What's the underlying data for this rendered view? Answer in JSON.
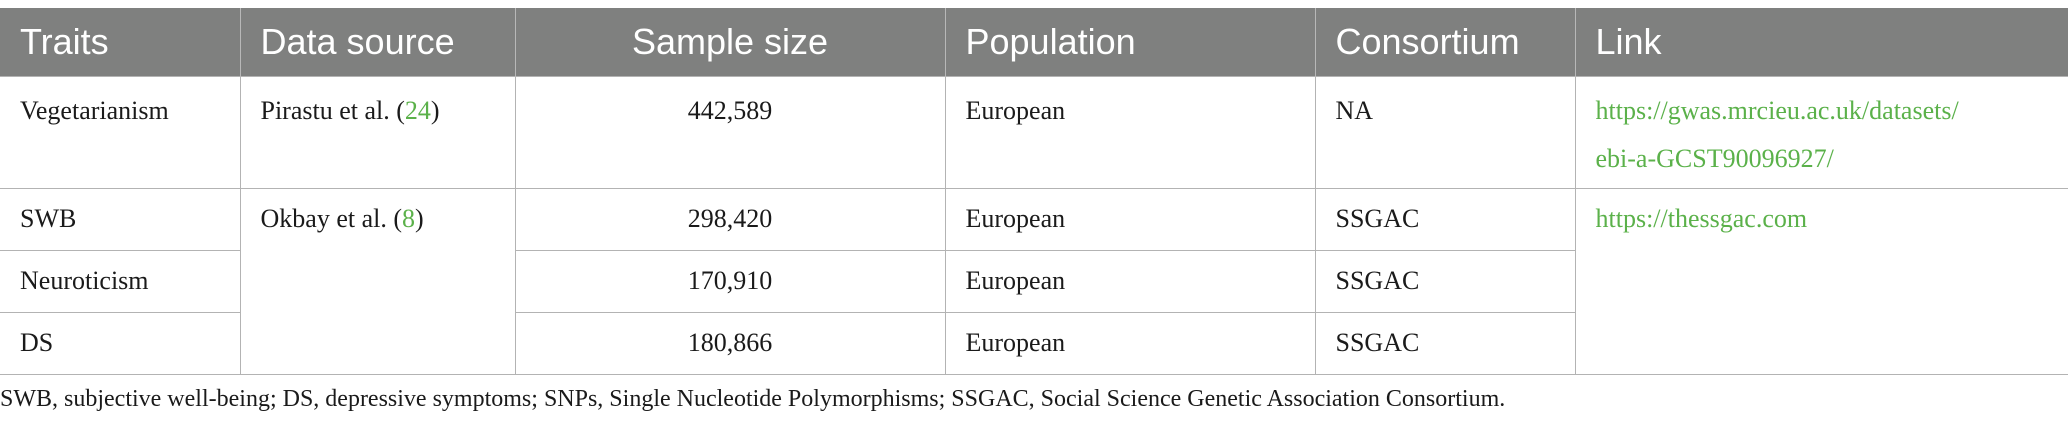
{
  "table": {
    "headers": [
      "Traits",
      "Data source",
      "Sample size",
      "Population",
      "Consortium",
      "Link"
    ],
    "rows": [
      {
        "trait": "Vegetarianism",
        "source_author": "Pirastu et al. (",
        "source_ref": "24",
        "source_close": ")",
        "sample_size": "442,589",
        "population": "European",
        "consortium": "NA",
        "link_line1": "https://gwas.mrcieu.ac.uk/datasets/",
        "link_line2": "ebi-a-GCST90096927/"
      },
      {
        "trait": "SWB",
        "source_author": "Okbay et al. (",
        "source_ref": "8",
        "source_close": ")",
        "sample_size": "298,420",
        "population": "European",
        "consortium": "SSGAC",
        "link": "https://thessgac.com"
      },
      {
        "trait": "Neuroticism",
        "sample_size": "170,910",
        "population": "European",
        "consortium": "SSGAC"
      },
      {
        "trait": "DS",
        "sample_size": "180,866",
        "population": "European",
        "consortium": "SSGAC"
      }
    ]
  },
  "footnote": "SWB, subjective well-being; DS, depressive symptoms; SNPs, Single Nucleotide Polymorphisms; SSGAC, Social Science Genetic Association Consortium.",
  "colors": {
    "header_bg": "#7f807f",
    "link": "#5bb14a",
    "grid": "#b3b3b3"
  }
}
